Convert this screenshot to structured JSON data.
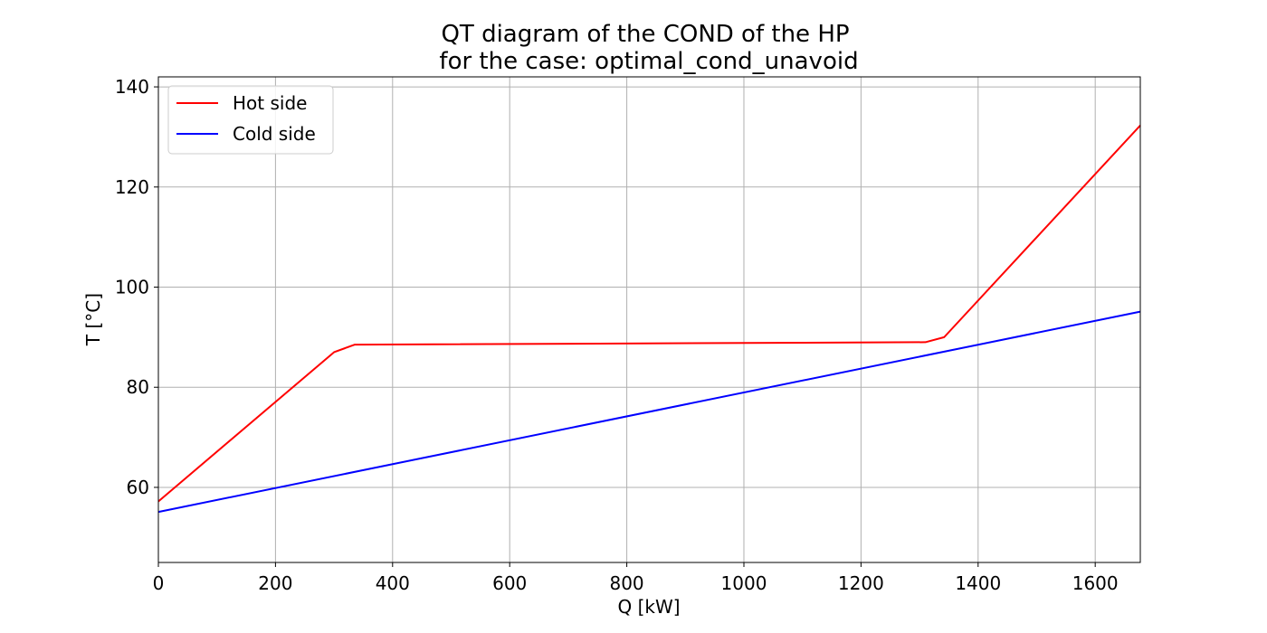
{
  "chart_data": {
    "type": "line",
    "title": "QT diagram of the COND of the HP",
    "subtitle": "for the case: optimal_cond_unavoid",
    "xlabel": "Q [kW]",
    "ylabel": "T [°C]",
    "xlim": [
      0,
      1677
    ],
    "ylim": [
      45,
      142
    ],
    "x_ticks": [
      0,
      200,
      400,
      600,
      800,
      1000,
      1200,
      1400,
      1600
    ],
    "y_ticks": [
      60,
      80,
      100,
      120,
      140
    ],
    "grid": true,
    "legend_position": "top-left",
    "series": [
      {
        "name": "Hot side",
        "color": "#ff0000",
        "points": [
          [
            0,
            57.2
          ],
          [
            300,
            87.0
          ],
          [
            335,
            88.5
          ],
          [
            1310,
            89.0
          ],
          [
            1342,
            90.0
          ],
          [
            1677,
            132.3
          ]
        ]
      },
      {
        "name": "Cold side",
        "color": "#0000ff",
        "points": [
          [
            0,
            55.1
          ],
          [
            1677,
            95.1
          ]
        ]
      }
    ]
  }
}
